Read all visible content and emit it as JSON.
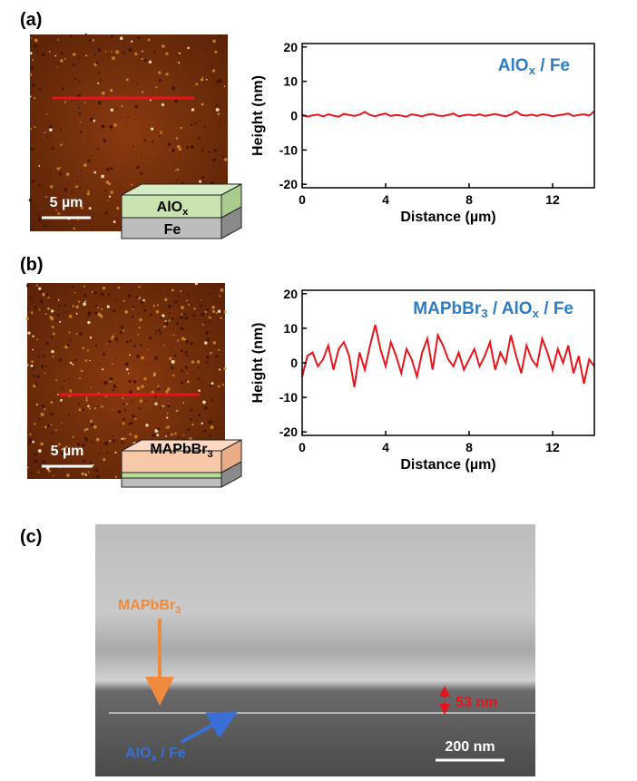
{
  "panels": [
    {
      "label": "(a)",
      "scale_bar": "5 µm",
      "layers": [
        {
          "parts": [
            {
              "text": "AlO"
            },
            {
              "sub": "x"
            }
          ]
        },
        {
          "parts": [
            {
              "text": "Fe"
            }
          ]
        }
      ]
    },
    {
      "label": "(b)",
      "scale_bar": "5 µm",
      "layers": [
        {
          "parts": [
            {
              "text": "MAPbBr"
            },
            {
              "sub": "3"
            }
          ]
        }
      ]
    },
    {
      "label": "(c)",
      "scale_bar": "200 nm",
      "thickness": "53 nm",
      "top_label": {
        "parts": [
          {
            "text": "MAPbBr"
          },
          {
            "sub": "3"
          }
        ]
      },
      "bottom_label": {
        "parts": [
          {
            "text": "AlO"
          },
          {
            "sub": "x"
          },
          {
            "text": " / Fe"
          }
        ]
      }
    }
  ],
  "chart_data": [
    {
      "type": "line",
      "x_label": "Distance (µm)",
      "y_label": "Height (nm)",
      "annotation": {
        "parts": [
          {
            "text": "AlO"
          },
          {
            "sub": "x"
          },
          {
            "text": " / Fe"
          }
        ]
      },
      "xlim": [
        0,
        14
      ],
      "ylim": [
        -21,
        21
      ],
      "xticks": [
        0,
        4,
        8,
        12
      ],
      "yticks": [
        -20,
        -10,
        0,
        10,
        20
      ],
      "x": [
        0,
        0.25,
        0.5,
        0.75,
        1,
        1.25,
        1.5,
        1.75,
        2,
        2.25,
        2.5,
        2.75,
        3,
        3.25,
        3.5,
        3.75,
        4,
        4.25,
        4.5,
        4.75,
        5,
        5.25,
        5.5,
        5.75,
        6,
        6.25,
        6.5,
        6.75,
        7,
        7.25,
        7.5,
        7.75,
        8,
        8.25,
        8.5,
        8.75,
        9,
        9.25,
        9.5,
        9.75,
        10,
        10.25,
        10.5,
        10.75,
        11,
        11.25,
        11.5,
        11.75,
        12,
        12.25,
        12.5,
        12.75,
        13,
        13.25,
        13.5,
        13.75,
        14
      ],
      "series": [
        {
          "color": "#e8141b",
          "values": [
            0.2,
            -0.3,
            0.1,
            0.3,
            -0.2,
            0.4,
            0,
            -0.3,
            0.5,
            0.2,
            -0.1,
            0.3,
            1.1,
            0.2,
            -0.2,
            0.3,
            0.6,
            -0.1,
            0.2,
            0,
            -0.3,
            0.4,
            0.1,
            -0.2,
            0.3,
            0.5,
            0,
            -0.1,
            0.2,
            0.6,
            -0.2,
            0.1,
            0.3,
            0,
            0.4,
            -0.1,
            0.2,
            0.5,
            0.1,
            -0.2,
            0.3,
            1.2,
            0.2,
            0,
            0.3,
            -0.1,
            0.4,
            0.2,
            -0.2,
            0.1,
            0.3,
            0.6,
            -0.1,
            0.2,
            0.4,
            0,
            1.3
          ]
        }
      ]
    },
    {
      "type": "line",
      "x_label": "Distance (µm)",
      "y_label": "Height (nm)",
      "annotation": {
        "parts": [
          {
            "text": "MAPbBr"
          },
          {
            "sub": "3"
          },
          {
            "text": " / AlO"
          },
          {
            "sub": "x"
          },
          {
            "text": " / Fe"
          }
        ]
      },
      "xlim": [
        0,
        14
      ],
      "ylim": [
        -21,
        21
      ],
      "xticks": [
        0,
        4,
        8,
        12
      ],
      "yticks": [
        -20,
        -10,
        0,
        10,
        20
      ],
      "x": [
        0,
        0.25,
        0.5,
        0.75,
        1,
        1.25,
        1.5,
        1.75,
        2,
        2.25,
        2.5,
        2.75,
        3,
        3.25,
        3.5,
        3.75,
        4,
        4.25,
        4.5,
        4.75,
        5,
        5.25,
        5.5,
        5.75,
        6,
        6.25,
        6.5,
        6.75,
        7,
        7.25,
        7.5,
        7.75,
        8,
        8.25,
        8.5,
        8.75,
        9,
        9.25,
        9.5,
        9.75,
        10,
        10.25,
        10.5,
        10.75,
        11,
        11.25,
        11.5,
        11.75,
        12,
        12.25,
        12.5,
        12.75,
        13,
        13.25,
        13.5,
        13.75,
        14
      ],
      "series": [
        {
          "color": "#e8141b",
          "values": [
            -4,
            2,
            3,
            -1,
            1,
            5,
            -2,
            4,
            6,
            2,
            -7,
            3,
            -2,
            5,
            11,
            4,
            -1,
            6,
            2,
            -3,
            4,
            1,
            -4,
            3,
            7,
            -2,
            8,
            5,
            1,
            -1,
            3,
            -2,
            1,
            4,
            -1,
            2,
            6,
            -2,
            3,
            0,
            8,
            2,
            -3,
            5,
            1,
            -1,
            7,
            3,
            -2,
            4,
            0,
            5,
            -3,
            2,
            -6,
            1,
            -1
          ]
        }
      ]
    }
  ]
}
